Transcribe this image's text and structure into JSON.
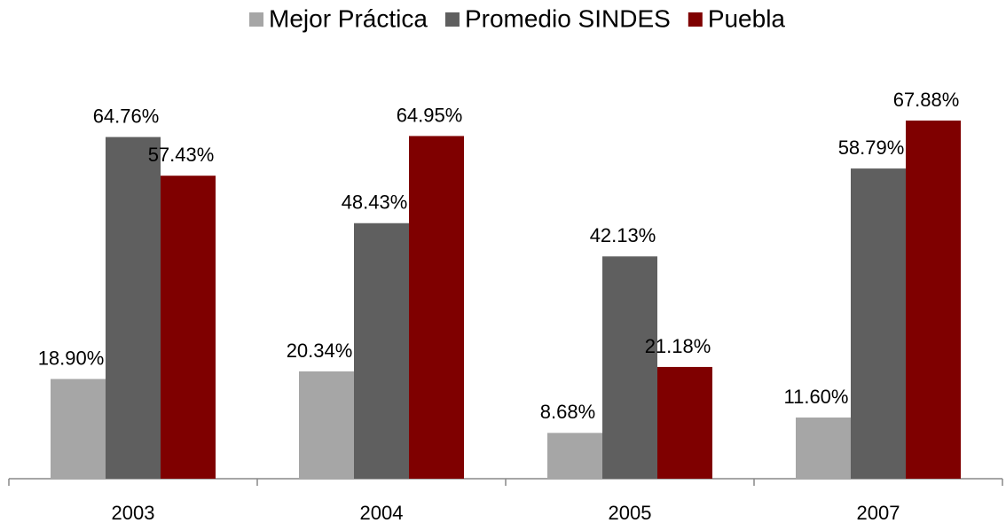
{
  "chart_data": {
    "type": "bar",
    "categories": [
      "2003",
      "2004",
      "2005",
      "2007"
    ],
    "series": [
      {
        "name": "Mejor Práctica",
        "color": "#a6a6a6",
        "values": [
          18.9,
          20.34,
          8.68,
          11.6
        ],
        "value_labels": [
          "18.90%",
          "20.34%",
          "8.68%",
          "11.60%"
        ]
      },
      {
        "name": "Promedio SINDES",
        "color": "#5f5f5f",
        "values": [
          64.76,
          48.43,
          42.13,
          58.79
        ],
        "value_labels": [
          "64.76%",
          "48.43%",
          "42.13%",
          "58.79%"
        ]
      },
      {
        "name": "Puebla",
        "color": "#7f0000",
        "values": [
          57.43,
          64.95,
          21.18,
          67.88
        ],
        "value_labels": [
          "57.43%",
          "64.95%",
          "21.18%",
          "67.88%"
        ]
      }
    ],
    "legend": "top"
  }
}
